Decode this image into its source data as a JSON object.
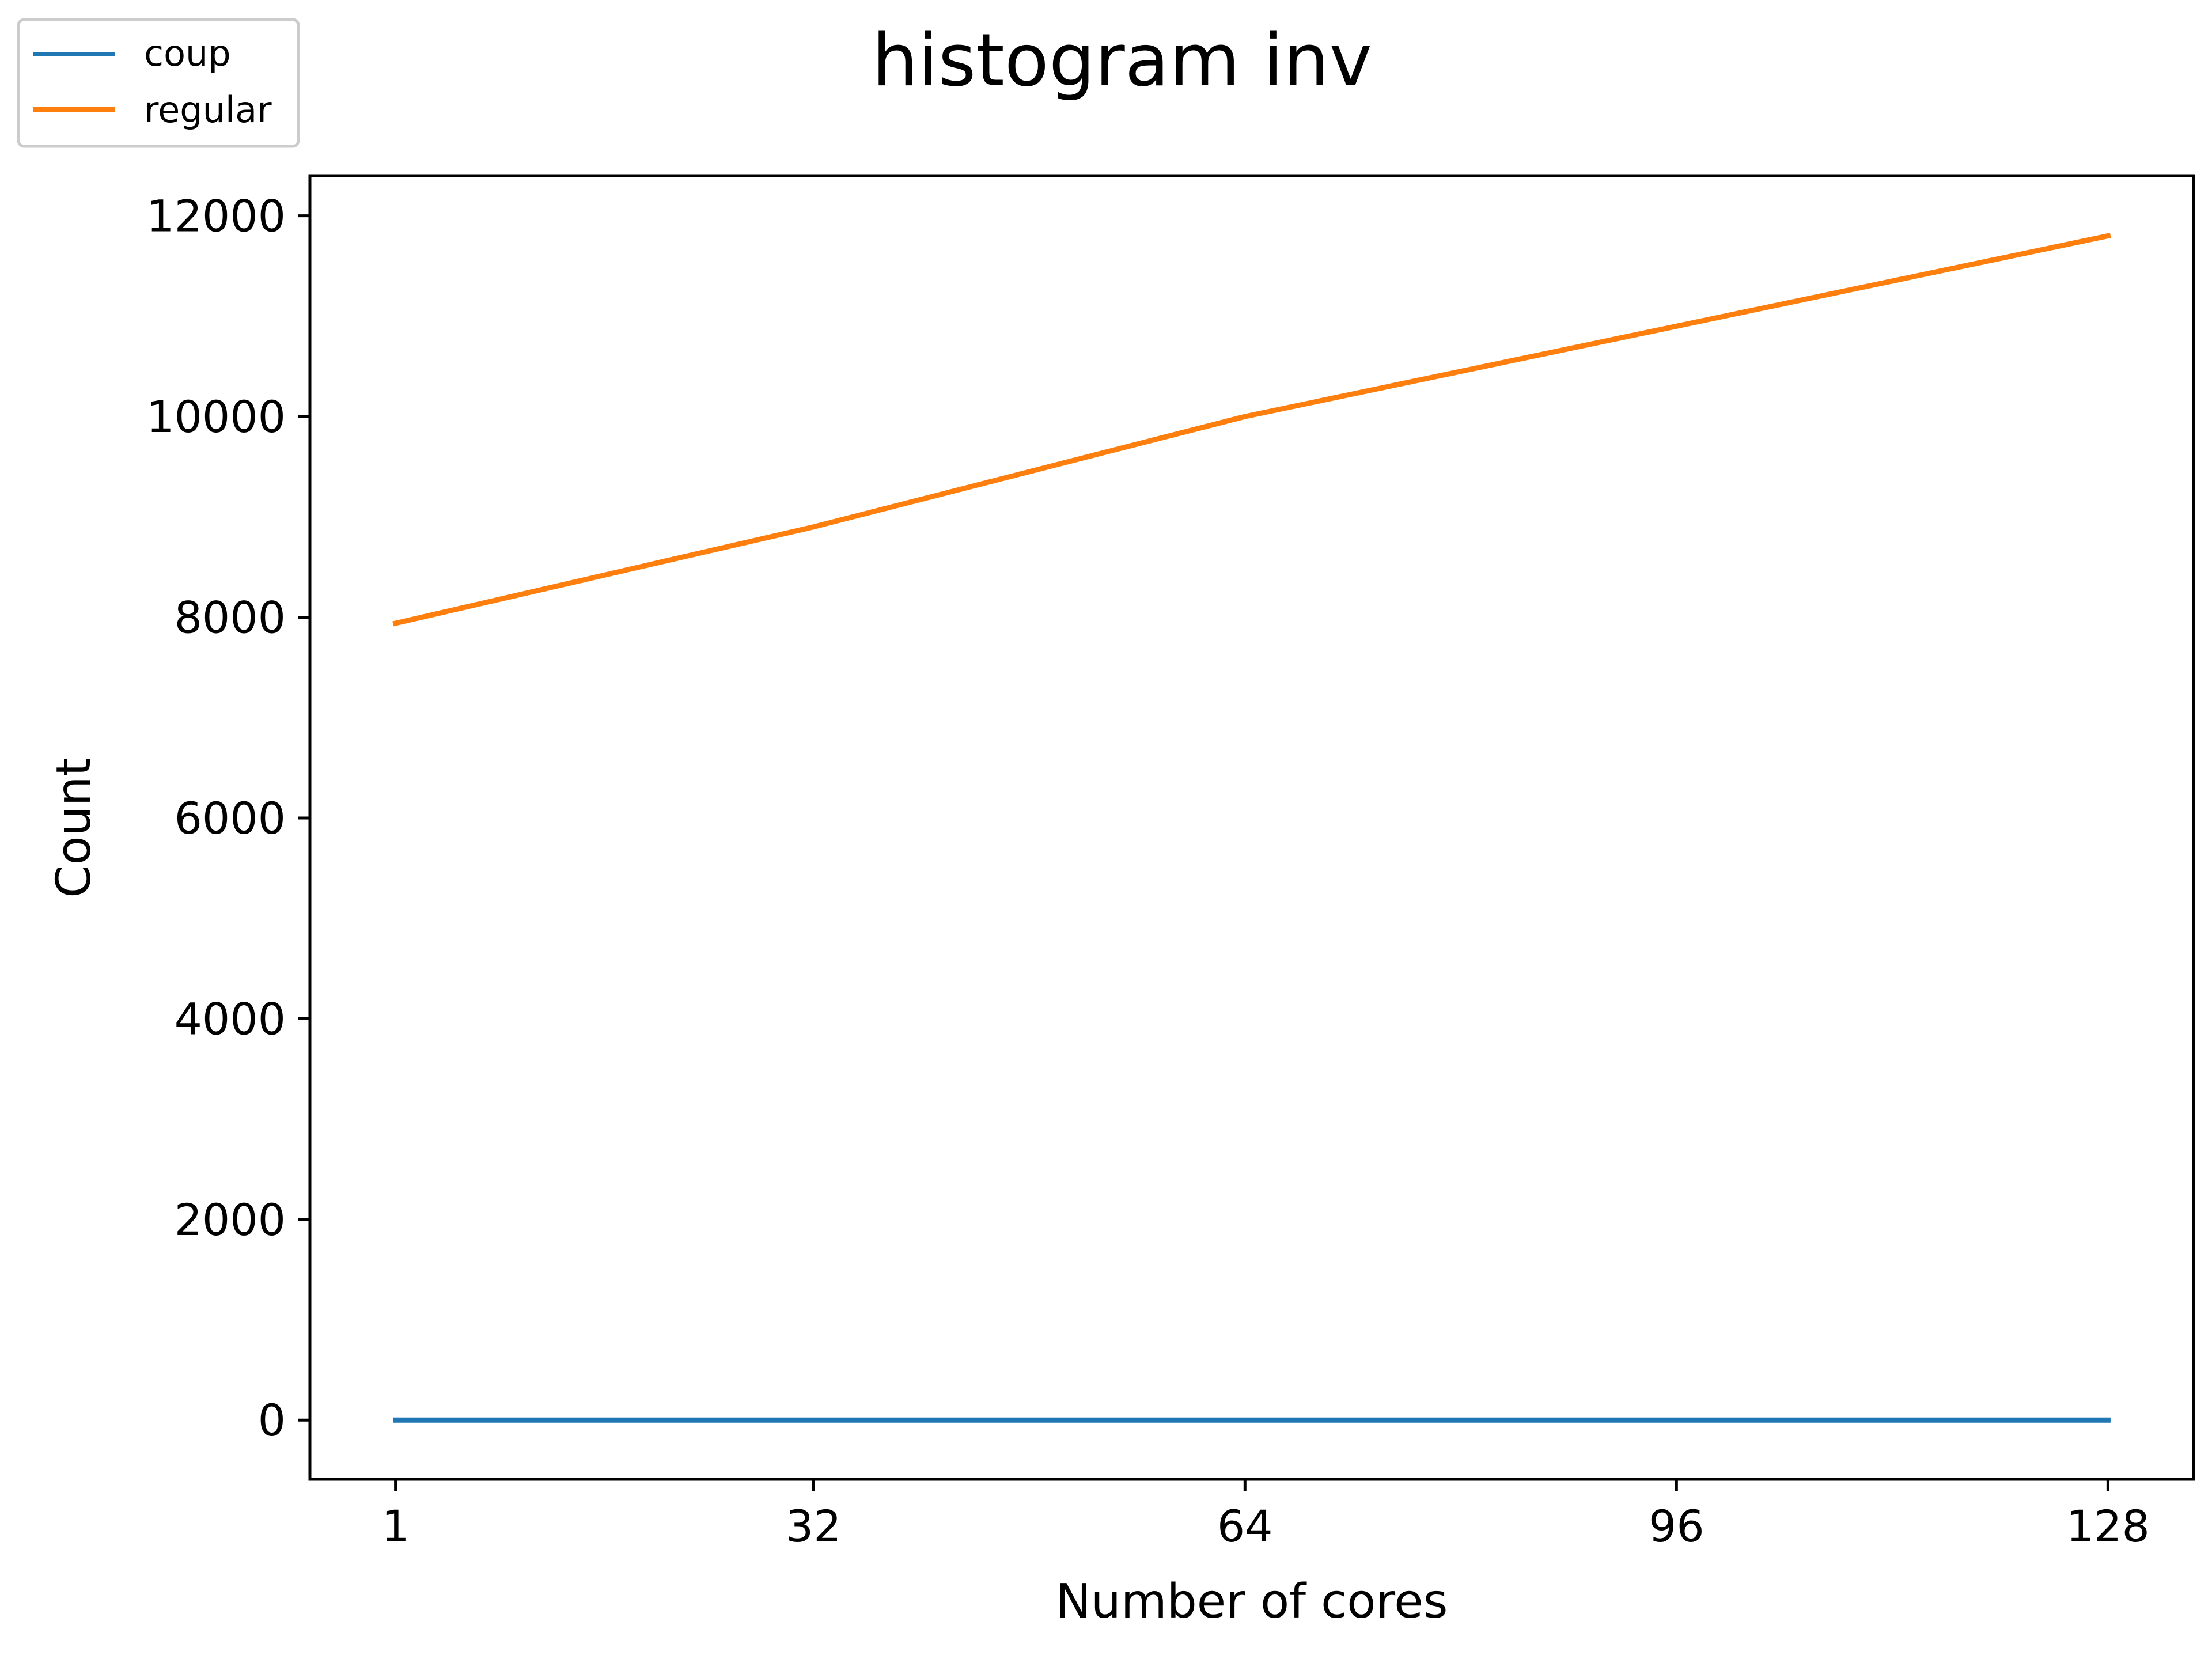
{
  "chart_data": {
    "type": "line",
    "title": "histogram inv",
    "xlabel": "Number of cores",
    "ylabel": "Count",
    "x": [
      1,
      32,
      64,
      96,
      128
    ],
    "xticks": [
      "1",
      "32",
      "64",
      "96",
      "128"
    ],
    "yticks": [
      "0",
      "2000",
      "4000",
      "6000",
      "8000",
      "10000",
      "12000"
    ],
    "xlim": [
      -5.35,
      134.35
    ],
    "ylim": [
      -590,
      12400
    ],
    "grid": false,
    "legend_position": "top-left (outside axes)",
    "series": [
      {
        "name": "coup",
        "color": "#1f77b4",
        "values": [
          0,
          0,
          0,
          0,
          0
        ]
      },
      {
        "name": "regular",
        "color": "#ff7f0e",
        "values": [
          7940,
          8900,
          10000,
          10900,
          11800
        ]
      }
    ]
  }
}
